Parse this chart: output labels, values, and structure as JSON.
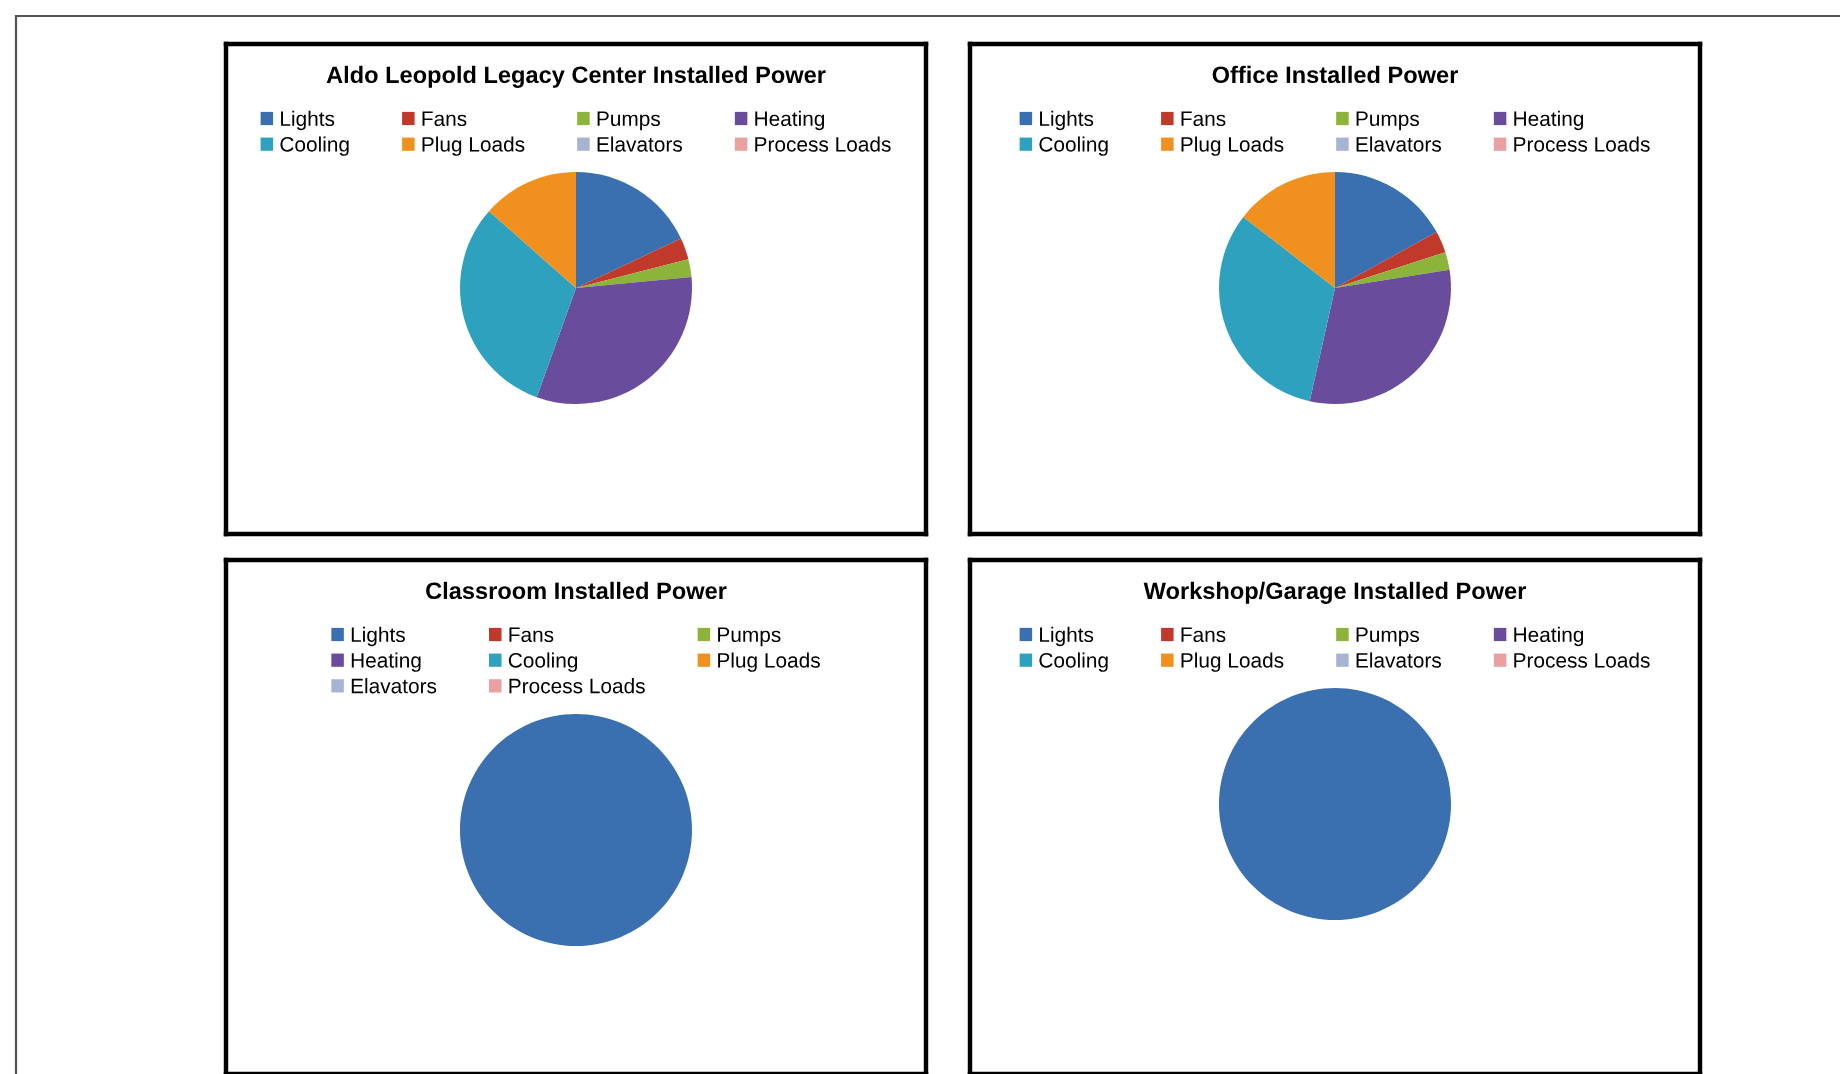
{
  "chart_data": [
    {
      "type": "pie",
      "title": "Aldo Leopold Legacy Center Installed Power",
      "categories": [
        "Lights",
        "Fans",
        "Pumps",
        "Heating",
        "Cooling",
        "Plug Loads",
        "Elavators",
        "Process Loads"
      ],
      "values": [
        18,
        3,
        2.5,
        32,
        31,
        13.5,
        0,
        0
      ],
      "colors": [
        "#3a6fb0",
        "#c0392b",
        "#8cb33a",
        "#6a4c9c",
        "#2ea1be",
        "#f0901e",
        "#a6b4d4",
        "#e8a0a0"
      ],
      "legend": "top"
    },
    {
      "type": "pie",
      "title": "Office Installed Power",
      "categories": [
        "Lights",
        "Fans",
        "Pumps",
        "Heating",
        "Cooling",
        "Plug Loads",
        "Elavators",
        "Process Loads"
      ],
      "values": [
        17,
        3,
        2.5,
        31,
        32,
        14.5,
        0,
        0
      ],
      "colors": [
        "#3a6fb0",
        "#c0392b",
        "#8cb33a",
        "#6a4c9c",
        "#2ea1be",
        "#f0901e",
        "#a6b4d4",
        "#e8a0a0"
      ],
      "legend": "top"
    },
    {
      "type": "pie",
      "title": "Classroom Installed Power",
      "categories": [
        "Lights",
        "Fans",
        "Pumps",
        "Heating",
        "Cooling",
        "Plug Loads",
        "Elavators",
        "Process Loads"
      ],
      "values": [
        100,
        0,
        0,
        0,
        0,
        0,
        0,
        0
      ],
      "colors": [
        "#3a6fb0",
        "#c0392b",
        "#8cb33a",
        "#6a4c9c",
        "#2ea1be",
        "#f0901e",
        "#a6b4d4",
        "#e8a0a0"
      ],
      "legend": "top"
    },
    {
      "type": "pie",
      "title": "Workshop/Garage Installed Power",
      "categories": [
        "Lights",
        "Fans",
        "Pumps",
        "Heating",
        "Cooling",
        "Plug Loads",
        "Elavators",
        "Process Loads"
      ],
      "values": [
        100,
        0,
        0,
        0,
        0,
        0,
        0,
        0
      ],
      "colors": [
        "#3a6fb0",
        "#c0392b",
        "#8cb33a",
        "#6a4c9c",
        "#2ea1be",
        "#f0901e",
        "#a6b4d4",
        "#e8a0a0"
      ],
      "legend": "top"
    }
  ]
}
